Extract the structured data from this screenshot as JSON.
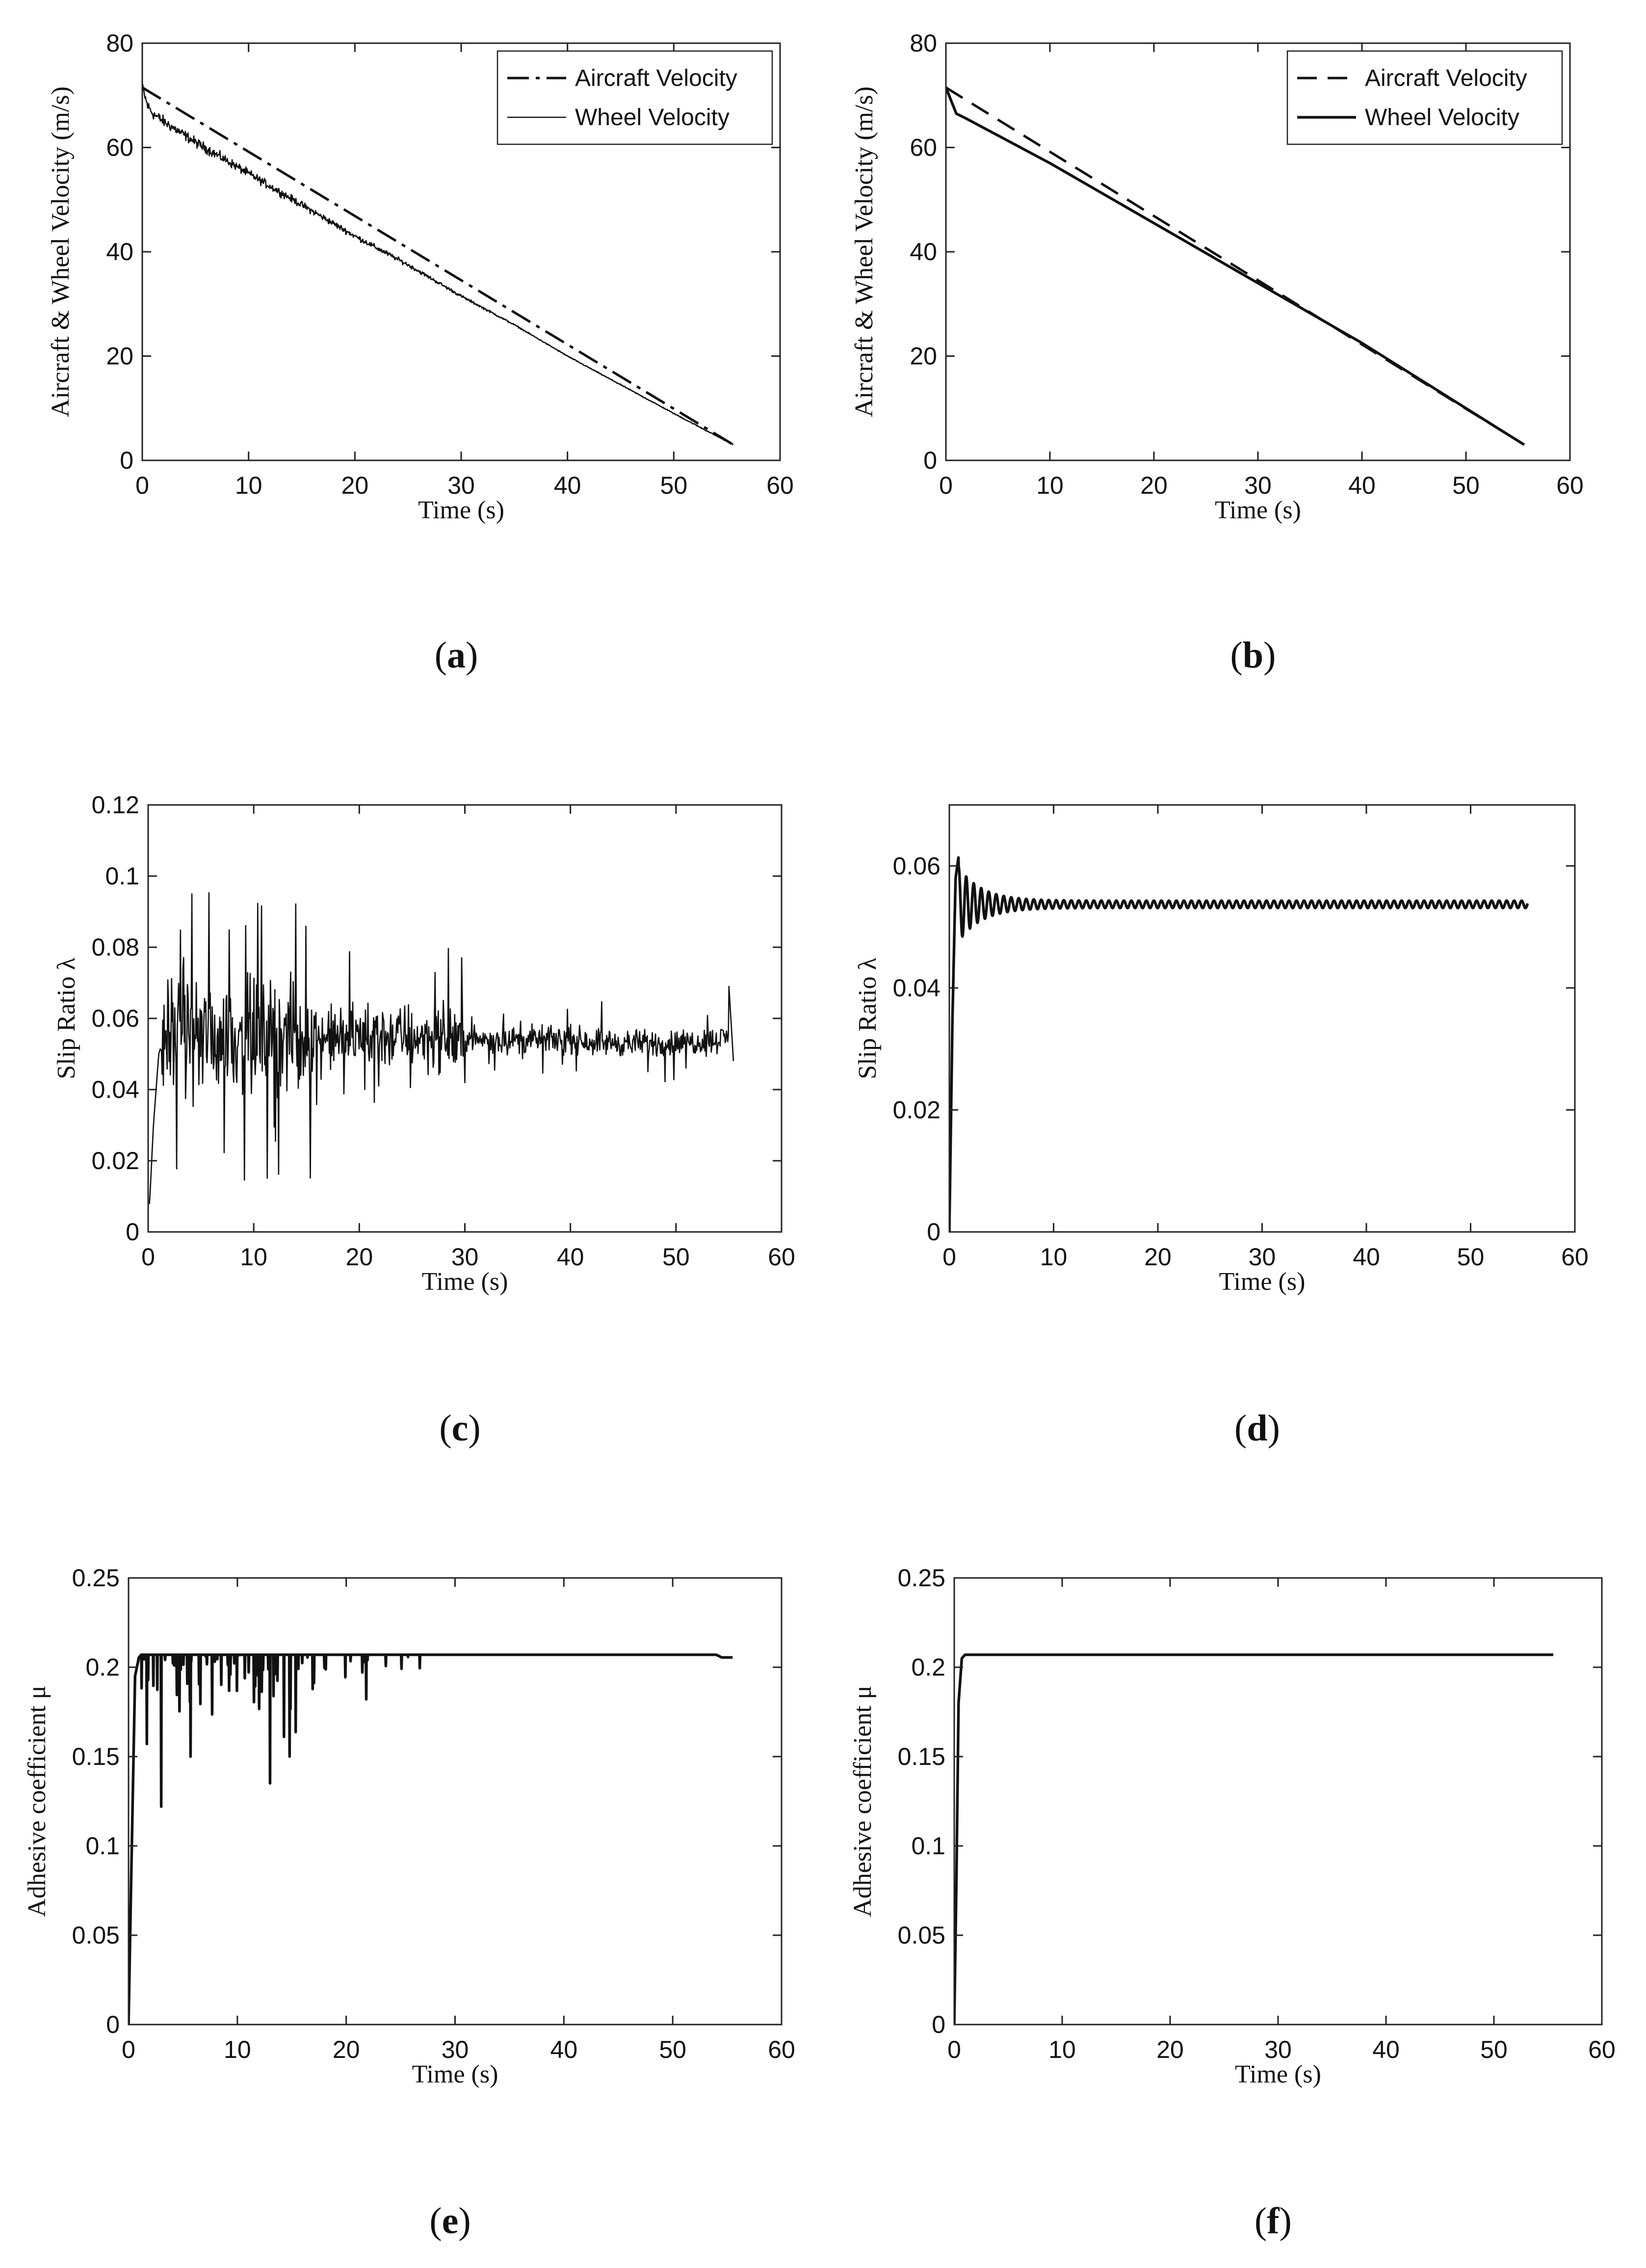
{
  "chart_data": [
    {
      "panel": "(a)",
      "panel_letter": "a",
      "type": "line",
      "xlabel": "Time (s)",
      "ylabel": "Aircraft & Wheel Velocity (m/s)",
      "xlim": [
        0,
        60
      ],
      "ylim": [
        0,
        80
      ],
      "xticks": [
        0,
        10,
        20,
        30,
        40,
        50,
        60
      ],
      "yticks": [
        0,
        20,
        40,
        60,
        80
      ],
      "grid": false,
      "legend": "top-right",
      "series": [
        {
          "name": "Aircraft Velocity",
          "style": "dash-dot",
          "x": [
            0,
            55.6
          ],
          "y": [
            71.5,
            3
          ]
        },
        {
          "name": "Wheel Velocity",
          "style": "thin-noisy",
          "x": [
            0,
            0.5,
            1,
            2,
            5,
            10,
            15,
            20,
            25,
            30,
            35,
            40,
            45,
            50,
            55.6
          ],
          "y": [
            71.5,
            68,
            66.5,
            65,
            61,
            55,
            49,
            43,
            37.5,
            31.5,
            26,
            20,
            14.5,
            9,
            3
          ]
        }
      ]
    },
    {
      "panel": "(b)",
      "panel_letter": "b",
      "type": "line",
      "xlabel": "Time (s)",
      "ylabel": "Aircraft & Wheel Velocity (m/s)",
      "xlim": [
        0,
        60
      ],
      "ylim": [
        0,
        80
      ],
      "xticks": [
        0,
        10,
        20,
        30,
        40,
        50,
        60
      ],
      "yticks": [
        0,
        20,
        40,
        60,
        80
      ],
      "grid": false,
      "legend": "top-right",
      "series": [
        {
          "name": "Aircraft Velocity",
          "style": "dashed",
          "x": [
            0,
            55.6
          ],
          "y": [
            71.5,
            3
          ]
        },
        {
          "name": "Wheel Velocity",
          "style": "solid",
          "x": [
            0,
            0.5,
            1,
            2,
            10,
            20,
            30,
            40,
            50,
            55.6
          ],
          "y": [
            71.5,
            69,
            66.5,
            65.5,
            57,
            45.5,
            34,
            22.5,
            10,
            3
          ]
        }
      ]
    },
    {
      "panel": "(c)",
      "panel_letter": "c",
      "type": "line",
      "xlabel": "Time (s)",
      "ylabel": "Slip Ratio λ",
      "xlim": [
        0,
        60
      ],
      "ylim": [
        0,
        0.12
      ],
      "xticks": [
        0,
        10,
        20,
        30,
        40,
        50,
        60
      ],
      "yticks": [
        0,
        0.02,
        0.04,
        0.06,
        0.08,
        0.1,
        0.12
      ],
      "grid": false,
      "series": [
        {
          "style": "thin-noisy",
          "x": [
            0,
            0.5,
            1,
            1.5,
            3,
            5,
            8,
            10,
            13,
            15,
            20,
            25,
            30,
            35,
            40,
            45,
            50,
            54,
            55,
            55.5
          ],
          "y": [
            0,
            0.03,
            0.05,
            0.055,
            0.055,
            0.055,
            0.055,
            0.055,
            0.055,
            0.054,
            0.055,
            0.055,
            0.054,
            0.054,
            0.054,
            0.053,
            0.053,
            0.054,
            0.055,
            0.045
          ]
        }
      ]
    },
    {
      "panel": "(d)",
      "panel_letter": "d",
      "type": "line",
      "xlabel": "Time (s)",
      "ylabel": "Slip Ratio λ",
      "xlim": [
        0,
        60
      ],
      "ylim": [
        0,
        0.07
      ],
      "xticks": [
        0,
        10,
        20,
        30,
        40,
        50,
        60
      ],
      "yticks": [
        0,
        0.02,
        0.04,
        0.06
      ],
      "grid": false,
      "series": [
        {
          "style": "solid",
          "x": [
            0,
            0.3,
            0.6,
            1.0,
            1.5,
            2.0,
            2.5,
            3.0,
            3.5,
            4.0,
            5.0,
            6.0,
            10,
            20,
            30,
            40,
            50,
            55.5
          ],
          "y": [
            0,
            0.035,
            0.058,
            0.063,
            0.056,
            0.061,
            0.052,
            0.057,
            0.052,
            0.056,
            0.052,
            0.055,
            0.0535,
            0.0535,
            0.0535,
            0.0535,
            0.0535,
            0.0535
          ]
        }
      ]
    },
    {
      "panel": "(e)",
      "panel_letter": "e",
      "type": "line",
      "xlabel": "Time (s)",
      "ylabel": "Adhesive coefficient μ",
      "xlim": [
        0,
        60
      ],
      "ylim": [
        0,
        0.25
      ],
      "xticks": [
        0,
        10,
        20,
        30,
        40,
        50,
        60
      ],
      "yticks": [
        0,
        0.05,
        0.1,
        0.15,
        0.2,
        0.25
      ],
      "grid": false,
      "series": [
        {
          "style": "solid-dips",
          "x": [
            0,
            0.3,
            0.6,
            1.0,
            2.0,
            10,
            20,
            30,
            40,
            50,
            55.5
          ],
          "y": [
            0,
            0.1,
            0.195,
            0.207,
            0.207,
            0.207,
            0.207,
            0.207,
            0.207,
            0.207,
            0.206
          ]
        }
      ]
    },
    {
      "panel": "(f)",
      "panel_letter": "f",
      "type": "line",
      "xlabel": "Time (s)",
      "ylabel": "Adhesive coefficient μ",
      "xlim": [
        0,
        60
      ],
      "ylim": [
        0,
        0.25
      ],
      "xticks": [
        0,
        10,
        20,
        30,
        40,
        50,
        60
      ],
      "yticks": [
        0,
        0.05,
        0.1,
        0.15,
        0.2,
        0.25
      ],
      "grid": false,
      "series": [
        {
          "style": "solid",
          "x": [
            0,
            0.2,
            0.4,
            0.7,
            1.0,
            55.5
          ],
          "y": [
            0,
            0.08,
            0.18,
            0.205,
            0.207,
            0.207
          ]
        }
      ]
    }
  ]
}
